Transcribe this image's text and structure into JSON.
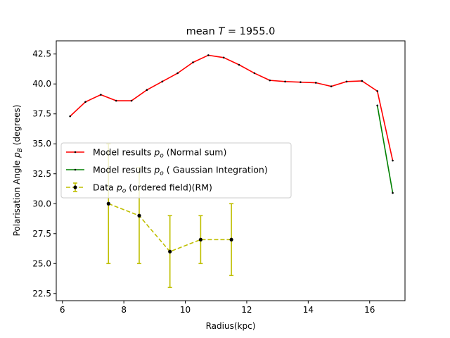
{
  "chart_data": {
    "type": "line",
    "title_prefix": "mean ",
    "title_var": "T",
    "title_suffix": " =  1955.0",
    "xlabel": "Radius(kpc)",
    "ylabel_prefix": "Polarisation Angle ",
    "ylabel_var": "p",
    "ylabel_sub": "B",
    "ylabel_suffix": " (degrees)",
    "xlim": [
      5.8,
      17.15
    ],
    "ylim": [
      21.9,
      43.6
    ],
    "xticks": [
      6,
      8,
      10,
      12,
      14,
      16
    ],
    "xtick_labels": [
      "6",
      "8",
      "10",
      "12",
      "14",
      "16"
    ],
    "yticks": [
      22.5,
      25.0,
      27.5,
      30.0,
      32.5,
      35.0,
      37.5,
      40.0,
      42.5
    ],
    "ytick_labels": [
      "22.5",
      "25.0",
      "27.5",
      "30.0",
      "32.5",
      "35.0",
      "37.5",
      "40.0",
      "42.5"
    ],
    "grid": false,
    "legend_position": "center-left",
    "series": [
      {
        "name_prefix": "Model results ",
        "name_var": "p",
        "name_sub": "o",
        "name_suffix": " (Normal sum)",
        "color": "#ff0000",
        "marker_color": "#000000",
        "x": [
          6.25,
          6.75,
          7.25,
          7.75,
          8.25,
          8.75,
          9.25,
          9.75,
          10.25,
          10.75,
          11.25,
          11.75,
          12.25,
          12.75,
          13.25,
          13.75,
          14.25,
          14.75,
          15.25,
          15.75,
          16.25,
          16.75
        ],
        "y": [
          37.3,
          38.5,
          39.1,
          38.6,
          38.6,
          39.5,
          40.2,
          40.9,
          41.8,
          42.4,
          42.2,
          41.6,
          40.9,
          40.3,
          40.2,
          40.15,
          40.1,
          39.8,
          40.2,
          40.25,
          39.4,
          33.6
        ]
      },
      {
        "name_prefix": "Model results ",
        "name_var": "p",
        "name_sub": "o",
        "name_suffix": " ( Gaussian Integration)",
        "color": "#008000",
        "marker_color": "#000000",
        "x": [
          16.25,
          16.75
        ],
        "y": [
          38.2,
          30.9
        ]
      },
      {
        "name_prefix": "Data ",
        "name_var": "p",
        "name_sub": "o",
        "name_suffix": " (ordered field)(RM)",
        "color": "#bfbf00",
        "marker_color": "#000000",
        "dashed": true,
        "x": [
          7.5,
          8.5,
          9.5,
          10.5,
          11.5
        ],
        "y": [
          30,
          29,
          26,
          27,
          27
        ],
        "yerr": [
          5,
          4,
          3,
          2,
          3
        ]
      }
    ]
  }
}
